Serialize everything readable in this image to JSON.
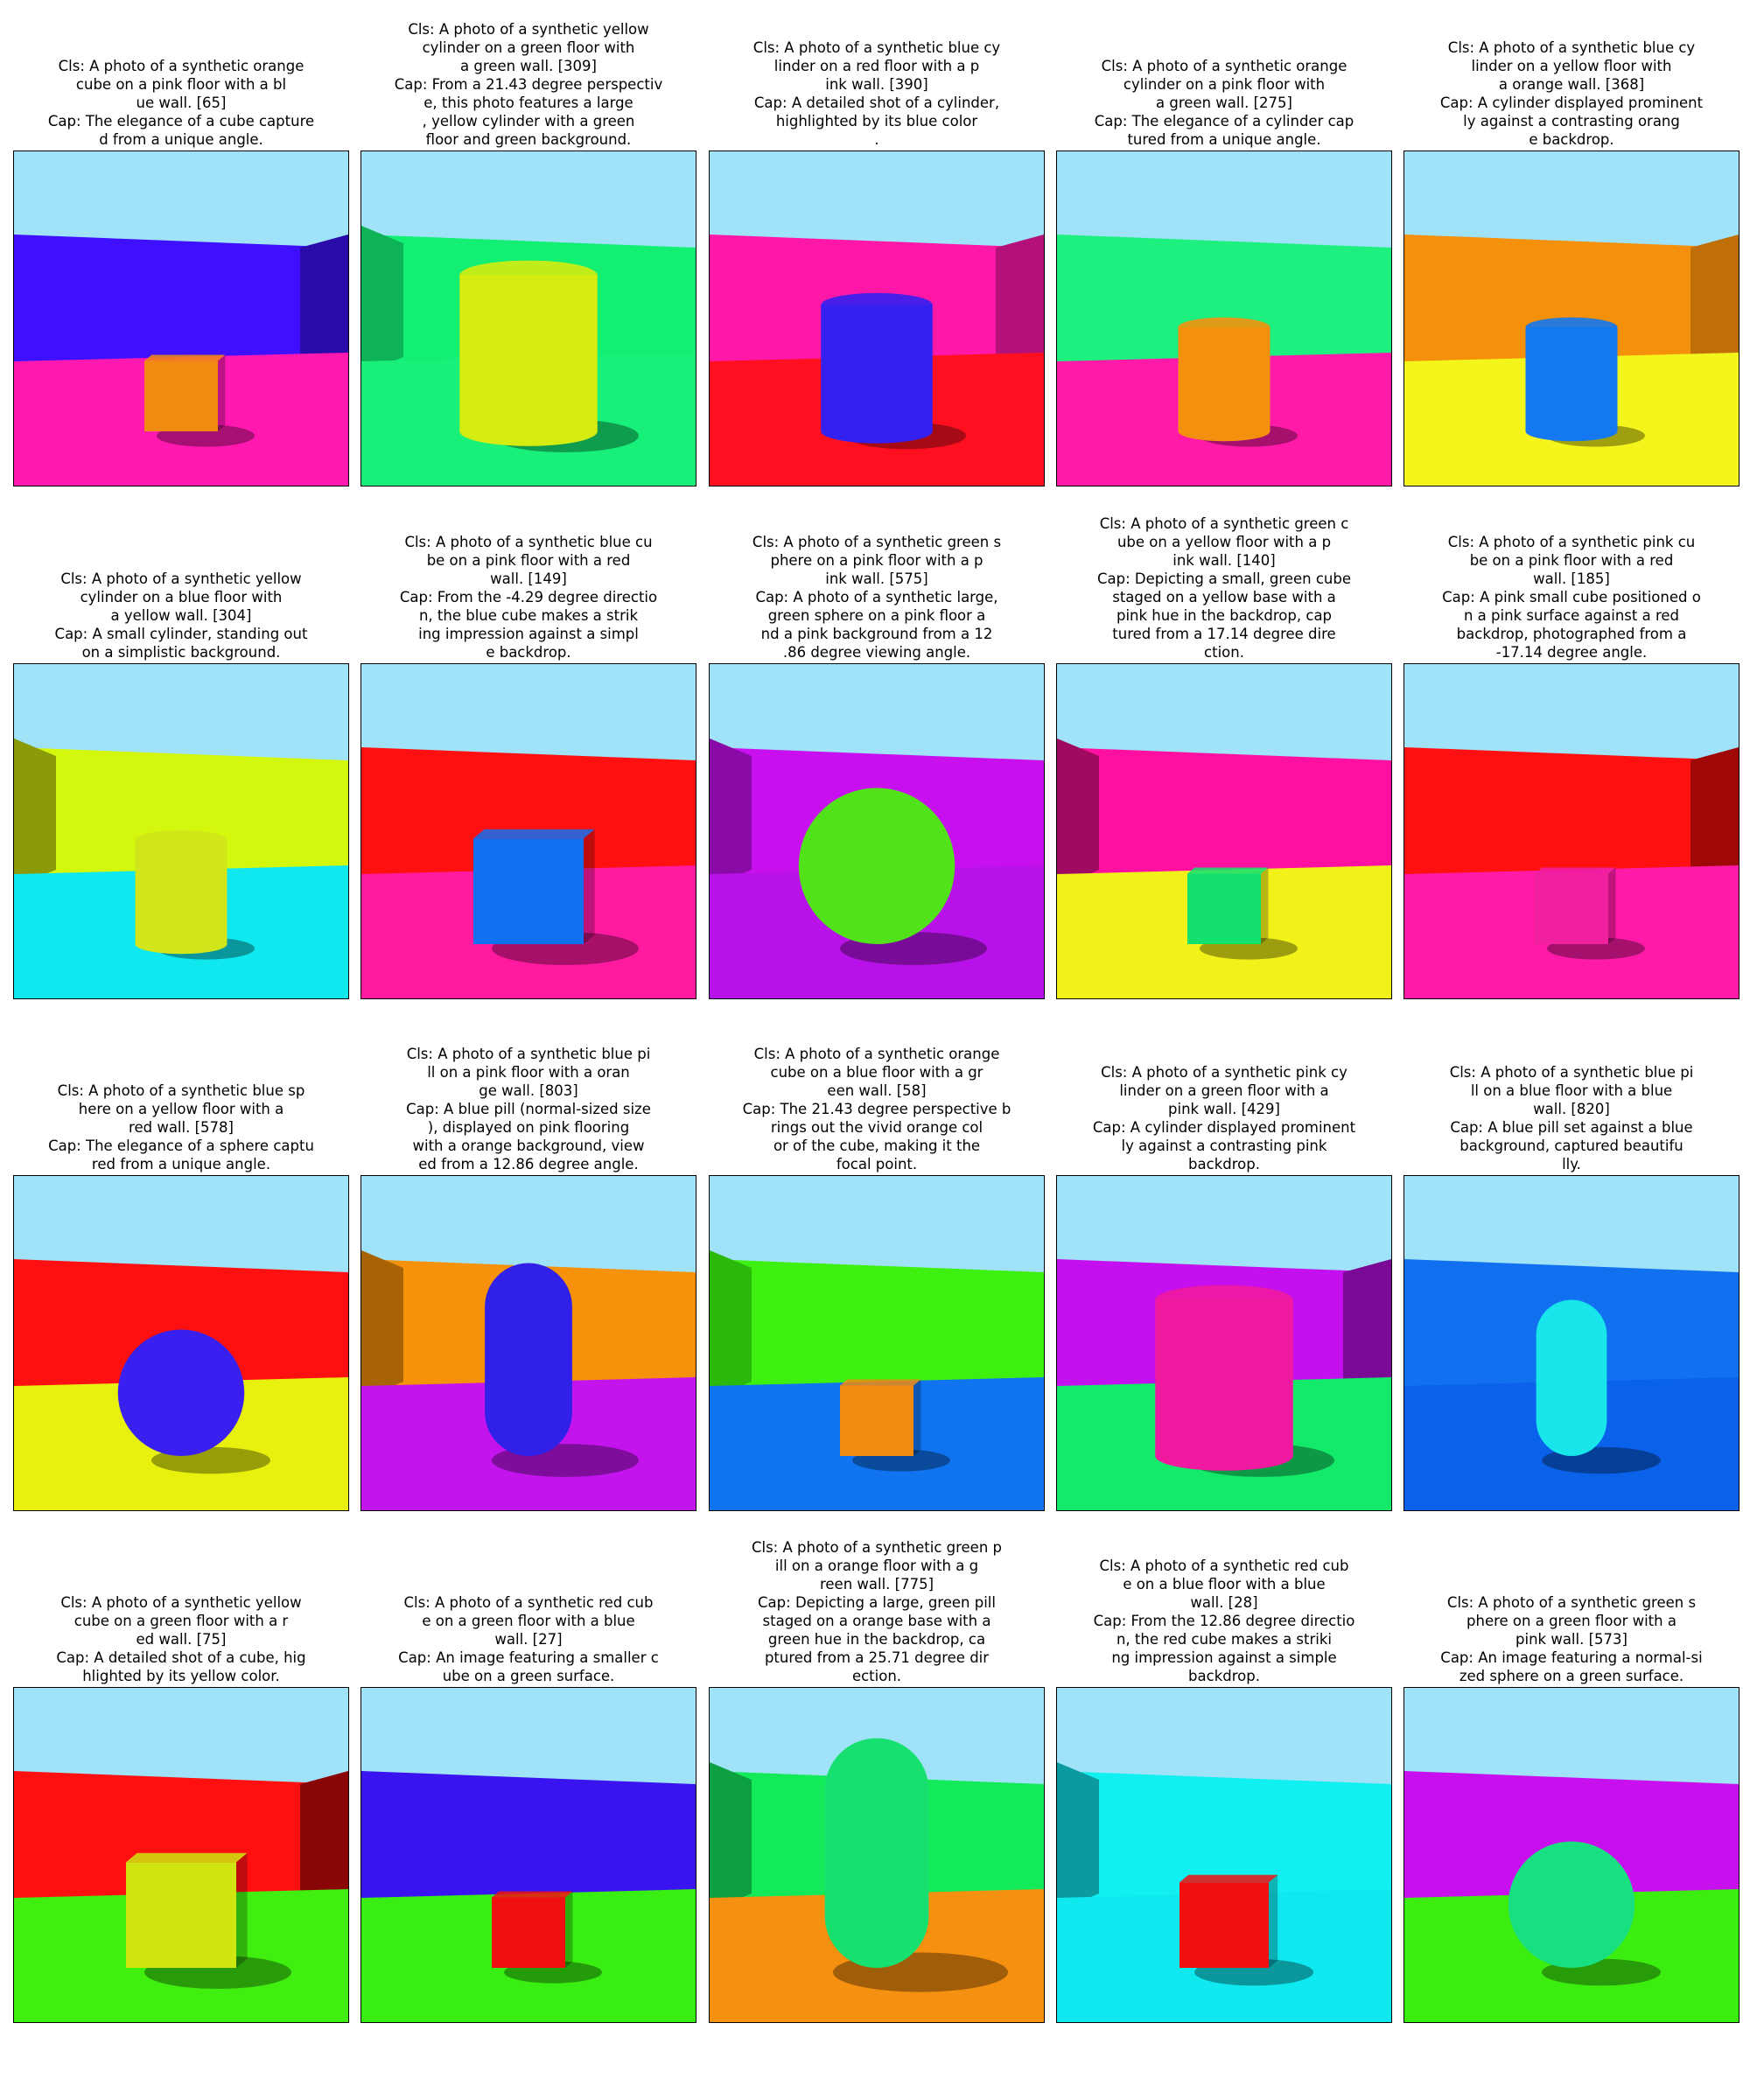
{
  "panels": [
    {
      "lines": [
        "Cls: A photo of a synthetic orange",
        "cube on a pink floor with a bl",
        "ue wall. [65]",
        "Cap: The elegance of a cube capture",
        "d from a unique angle."
      ],
      "scene": {
        "wall": "#3f0fff",
        "side": "#2a0aa8",
        "floor": "#ff19b0",
        "obj": "cube",
        "color": "#f08a10",
        "size": "small",
        "sideWalls": "right"
      }
    },
    {
      "lines": [
        "Cls: A photo of a synthetic yellow",
        "cylinder on a green floor with",
        "a green wall. [309]",
        "Cap: From a 21.43 degree perspectiv",
        "e, this photo features a large",
        ", yellow cylinder with a green",
        "floor and green background."
      ],
      "scene": {
        "wall": "#12ef72",
        "side": "#0fb357",
        "floor": "#19f07a",
        "obj": "cylinder",
        "color": "#d4ec10",
        "size": "large",
        "sideWalls": "left"
      }
    },
    {
      "lines": [
        "Cls: A photo of a synthetic blue cy",
        "linder on a red floor with a p",
        "ink wall. [390]",
        "Cap: A detailed shot of a cylinder,",
        "highlighted by its blue color",
        "."
      ],
      "scene": {
        "wall": "#ff18a8",
        "side": "#b4107a",
        "floor": "#ff1020",
        "obj": "cylinder",
        "color": "#3420f0",
        "size": "medium",
        "sideWalls": "right"
      }
    },
    {
      "lines": [
        "Cls: A photo of a synthetic orange",
        "cylinder on a pink floor with",
        "a green wall. [275]",
        "Cap: The elegance of a cylinder cap",
        "tured from a unique angle."
      ],
      "scene": {
        "wall": "#1ef080",
        "side": "#15b860",
        "floor": "#ff1aa8",
        "obj": "cylinder",
        "color": "#f3910e",
        "size": "small",
        "sideWalls": "none"
      }
    },
    {
      "lines": [
        "Cls: A photo of a synthetic blue cy",
        "linder on a yellow floor with",
        "a orange wall. [368]",
        "Cap: A cylinder displayed prominent",
        "ly against a contrasting orang",
        "e backdrop."
      ],
      "scene": {
        "wall": "#f5900a",
        "side": "#c06e06",
        "floor": "#f4f51a",
        "obj": "cylinder",
        "color": "#1478f0",
        "size": "small",
        "sideWalls": "right"
      }
    },
    {
      "lines": [
        "Cls: A photo of a synthetic yellow",
        "cylinder on a blue floor with",
        "a yellow wall. [304]",
        "Cap: A small cylinder, standing out",
        "on a simplistic background."
      ],
      "scene": {
        "wall": "#d4f70e",
        "side": "#8a9a08",
        "floor": "#10e8f0",
        "obj": "cylinder",
        "color": "#d0e61a",
        "size": "small",
        "sideWalls": "left"
      }
    },
    {
      "lines": [
        "Cls: A photo of a synthetic blue cu",
        "be on a pink floor with a red",
        "wall. [149]",
        "Cap: From the -4.29 degree directio",
        "n, the blue cube makes a strik",
        "ing impression against a simpl",
        "e backdrop."
      ],
      "scene": {
        "wall": "#ff1010",
        "side": "#c00808",
        "floor": "#ff1aa0",
        "obj": "cube",
        "color": "#1070f0",
        "size": "large",
        "sideWalls": "none"
      }
    },
    {
      "lines": [
        "Cls: A photo of a synthetic green s",
        "phere on a pink floor with a p",
        "ink wall. [575]",
        "Cap: A photo of a synthetic large,",
        "green sphere on a pink floor a",
        "nd a pink background from a 12",
        ".86 degree viewing angle."
      ],
      "scene": {
        "wall": "#c810ee",
        "side": "#8a0aa8",
        "floor": "#b812e8",
        "obj": "sphere",
        "color": "#52e21a",
        "size": "large",
        "sideWalls": "left"
      }
    },
    {
      "lines": [
        "Cls: A photo of a synthetic green c",
        "ube on a yellow floor with a p",
        "ink wall. [140]",
        "Cap: Depicting a small, green cube",
        "staged on a yellow base with a",
        "pink hue in the backdrop, cap",
        "tured from a 17.14 degree dire",
        "ction."
      ],
      "scene": {
        "wall": "#ff10a0",
        "side": "#a00a60",
        "floor": "#f2f21a",
        "obj": "cube",
        "color": "#14e070",
        "size": "small",
        "sideWalls": "left"
      }
    },
    {
      "lines": [
        "Cls: A photo of a synthetic pink cu",
        "be on a pink floor with a red",
        "wall. [185]",
        "Cap: A pink small cube positioned o",
        "n a pink surface against a red",
        "backdrop, photographed from a",
        "-17.14 degree angle."
      ],
      "scene": {
        "wall": "#ff1010",
        "side": "#a00808",
        "floor": "#ff1aa8",
        "obj": "cube",
        "color": "#f020a0",
        "size": "small",
        "sideWalls": "right"
      }
    },
    {
      "lines": [
        "Cls: A photo of a synthetic blue sp",
        "here on a yellow floor with a",
        "red wall. [578]",
        "Cap: The elegance of a sphere captu",
        "red from a unique angle."
      ],
      "scene": {
        "wall": "#ff1010",
        "side": "#c00808",
        "floor": "#e8f00e",
        "obj": "sphere",
        "color": "#3a20f0",
        "size": "medium",
        "sideWalls": "none"
      }
    },
    {
      "lines": [
        "Cls: A photo of a synthetic blue pi",
        "ll on a pink floor with a oran",
        "ge wall. [803]",
        "Cap: A blue pill (normal-sized size",
        "), displayed on pink flooring",
        "with a orange background, view",
        "ed from a 12.86 degree angle."
      ],
      "scene": {
        "wall": "#f5920a",
        "side": "#a86404",
        "floor": "#c414ee",
        "obj": "pill",
        "color": "#3020e8",
        "size": "large",
        "sideWalls": "left"
      }
    },
    {
      "lines": [
        "Cls: A photo of a synthetic orange",
        "cube on a blue floor with a gr",
        "een wall. [58]",
        "Cap: The 21.43 degree perspective b",
        "rings out the vivid orange col",
        "or of the cube, making it the",
        "focal point."
      ],
      "scene": {
        "wall": "#3ef010",
        "side": "#2ab80a",
        "floor": "#1074f0",
        "obj": "cube",
        "color": "#f08a10",
        "size": "small",
        "sideWalls": "left"
      }
    },
    {
      "lines": [
        "Cls: A photo of a synthetic pink cy",
        "linder on a green floor with a",
        "pink wall. [429]",
        "Cap: A cylinder displayed prominent",
        "ly against a contrasting pink",
        "backdrop."
      ],
      "scene": {
        "wall": "#c410ee",
        "side": "#7a0a96",
        "floor": "#14ea6a",
        "obj": "cylinder",
        "color": "#f01aa0",
        "size": "large",
        "sideWalls": "right"
      }
    },
    {
      "lines": [
        "Cls: A photo of a synthetic blue pi",
        "ll on a blue floor with a blue",
        "wall. [820]",
        "Cap: A blue pill set against a blue",
        "background, captured beautifu",
        "lly."
      ],
      "scene": {
        "wall": "#1070f0",
        "side": "#0a50b0",
        "floor": "#0a62ea",
        "obj": "pill",
        "color": "#18e6ea",
        "size": "medium",
        "sideWalls": "none"
      }
    },
    {
      "lines": [
        "Cls: A photo of a synthetic yellow",
        "cube on a green floor with a r",
        "ed wall. [75]",
        "Cap: A detailed shot of a cube, hig",
        "hlighted by its yellow color."
      ],
      "scene": {
        "wall": "#ff1010",
        "side": "#8a0606",
        "floor": "#40ee10",
        "obj": "cube",
        "color": "#d0e610",
        "size": "large",
        "sideWalls": "right"
      }
    },
    {
      "lines": [
        "Cls: A photo of a synthetic red cub",
        "e on a green floor with a blue",
        "wall. [27]",
        "Cap: An image featuring a smaller c",
        "ube on a green surface."
      ],
      "scene": {
        "wall": "#3a14f0",
        "side": "#2a0ab0",
        "floor": "#38ee12",
        "obj": "cube",
        "color": "#f01010",
        "size": "small",
        "sideWalls": "none"
      }
    },
    {
      "lines": [
        "Cls: A photo of a synthetic green p",
        "ill on a orange floor with a g",
        "reen wall. [775]",
        "Cap: Depicting a large, green pill",
        "staged on a orange base with a",
        "green hue in the backdrop, ca",
        "ptured from a 25.71 degree dir",
        "ection."
      ],
      "scene": {
        "wall": "#12ea5a",
        "side": "#0ca040",
        "floor": "#f69010",
        "obj": "pill",
        "color": "#18e070",
        "size": "xlarge",
        "sideWalls": "left"
      }
    },
    {
      "lines": [
        "Cls: A photo of a synthetic red cub",
        "e on a blue floor with a blue",
        "wall. [28]",
        "Cap: From the 12.86 degree directio",
        "n, the red cube makes a striki",
        "ng impression against a simple",
        "backdrop."
      ],
      "scene": {
        "wall": "#10f0f0",
        "side": "#0a9aa0",
        "floor": "#10e8f0",
        "obj": "cube",
        "color": "#f01010",
        "size": "medium",
        "sideWalls": "left"
      }
    },
    {
      "lines": [
        "Cls: A photo of a synthetic green s",
        "phere on a green floor with a",
        "pink wall. [573]",
        "Cap: An image featuring a normal-si",
        "zed sphere on a green surface."
      ],
      "scene": {
        "wall": "#c810ee",
        "side": "#8a0aa8",
        "floor": "#3cee10",
        "obj": "sphere",
        "color": "#18e080",
        "size": "medium",
        "sideWalls": "none"
      }
    }
  ]
}
